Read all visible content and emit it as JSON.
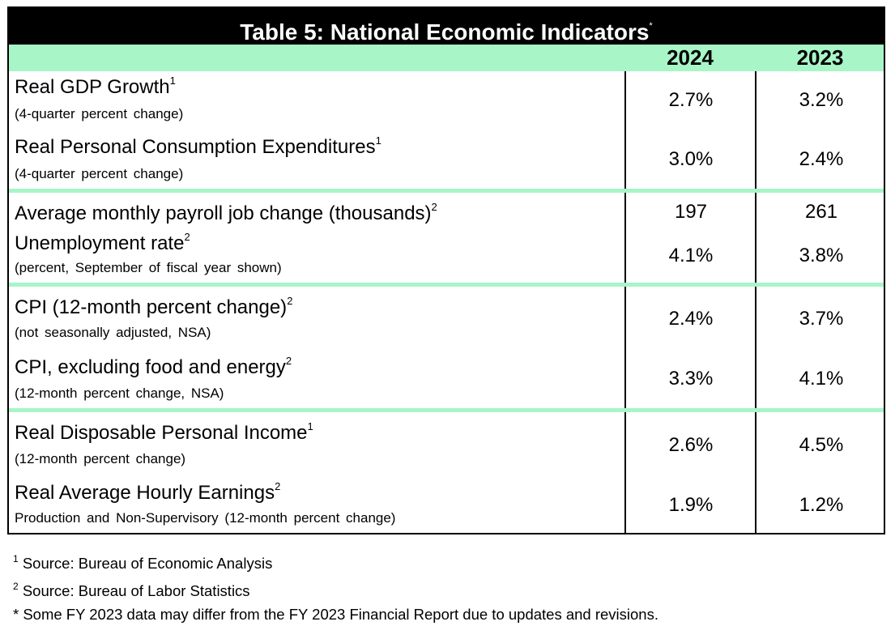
{
  "table": {
    "title": "Table 5: National Economic Indicators",
    "title_mark": "*",
    "col1": "2024",
    "col2": "2023",
    "rows": [
      {
        "label": "Real GDP Growth",
        "sup": "1",
        "sub": "(4-quarter  percent change)",
        "v1": "2.7%",
        "v2": "3.2%"
      },
      {
        "label": "Real Personal Consumption Expenditures",
        "sup": "1",
        "sub": "(4-quarter  percent change)",
        "v1": "3.0%",
        "v2": "2.4%"
      },
      {
        "label": "Average monthly payroll job change (thousands)",
        "sup": "2",
        "sub": "",
        "v1": "197",
        "v2": "261"
      },
      {
        "label": "Unemployment rate",
        "sup": "2",
        "sub": "(percent,  September of fiscal year shown)",
        "v1": "4.1%",
        "v2": "3.8%"
      },
      {
        "label": "CPI (12-month percent change)",
        "sup": "2",
        "sub": "(not seasonally adjusted, NSA)",
        "v1": "2.4%",
        "v2": "3.7%"
      },
      {
        "label": "CPI, excluding food and energy",
        "sup": "2",
        "sub": "(12-month  percent change, NSA)",
        "v1": "3.3%",
        "v2": "4.1%"
      },
      {
        "label": "Real Disposable Personal Income",
        "sup": "1",
        "sub": "(12-month  percent change)",
        "v1": "2.6%",
        "v2": "4.5%"
      },
      {
        "label": "Real Average Hourly Earnings",
        "sup": "2",
        "sub": "Production and Non-Supervisory  (12-month  percent change)",
        "v1": "1.9%",
        "v2": "1.2%"
      }
    ]
  },
  "footnotes": [
    {
      "mark": "1",
      "text": " Source: Bureau of Economic Analysis"
    },
    {
      "mark": "2",
      "text": " Source: Bureau of Labor Statistics"
    },
    {
      "mark": "",
      "text": "* Some FY 2023 data may differ from the FY 2023 Financial Report due to updates and revisions."
    }
  ]
}
